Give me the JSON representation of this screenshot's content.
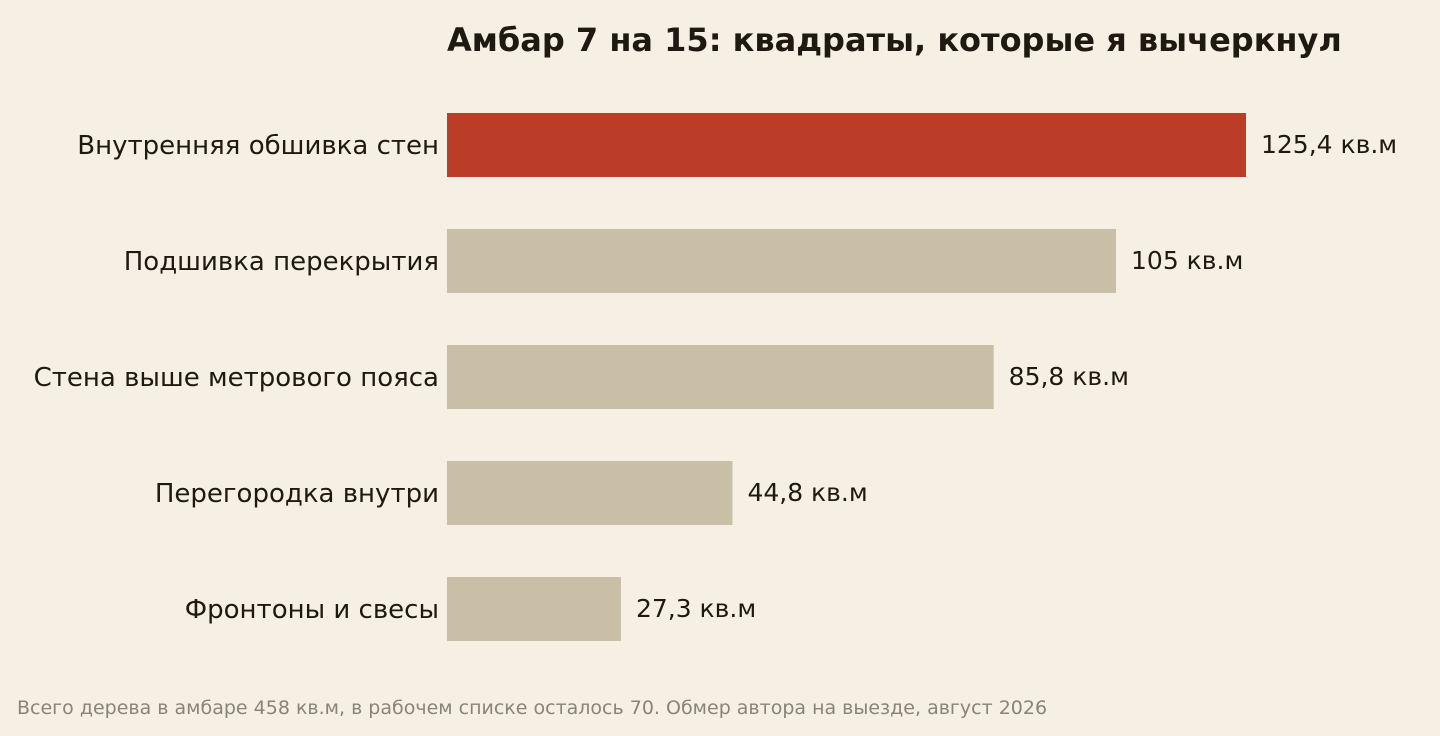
{
  "chart_data": {
    "type": "bar",
    "orientation": "horizontal",
    "title": "Амбар 7 на 15: квадраты, которые я вычеркнул",
    "categories": [
      "Внутренняя обшивка стен",
      "Подшивка перекрытия",
      "Стена выше метрового пояса",
      "Перегородка внутри",
      "Фронтоны и свесы"
    ],
    "values": [
      125.4,
      105,
      85.8,
      44.8,
      27.3
    ],
    "value_labels": [
      "125,4 кв.м",
      "105 кв.м",
      "85,8 кв.м",
      "44,8 кв.м",
      "27,3 кв.м"
    ],
    "highlight_index": 0,
    "colors": {
      "highlight": "#bc3d27",
      "default": "#c9bfa6",
      "background": "#f6f0e4",
      "text": "#1e1a12",
      "footnote": "#8a8478"
    },
    "xlim": [
      0,
      125.4
    ],
    "grid": false,
    "legend": "none",
    "footnote": "Всего дерева в амбаре 458 кв.м, в рабочем списке осталось 70. Обмер автора на выезде, август 2026"
  }
}
